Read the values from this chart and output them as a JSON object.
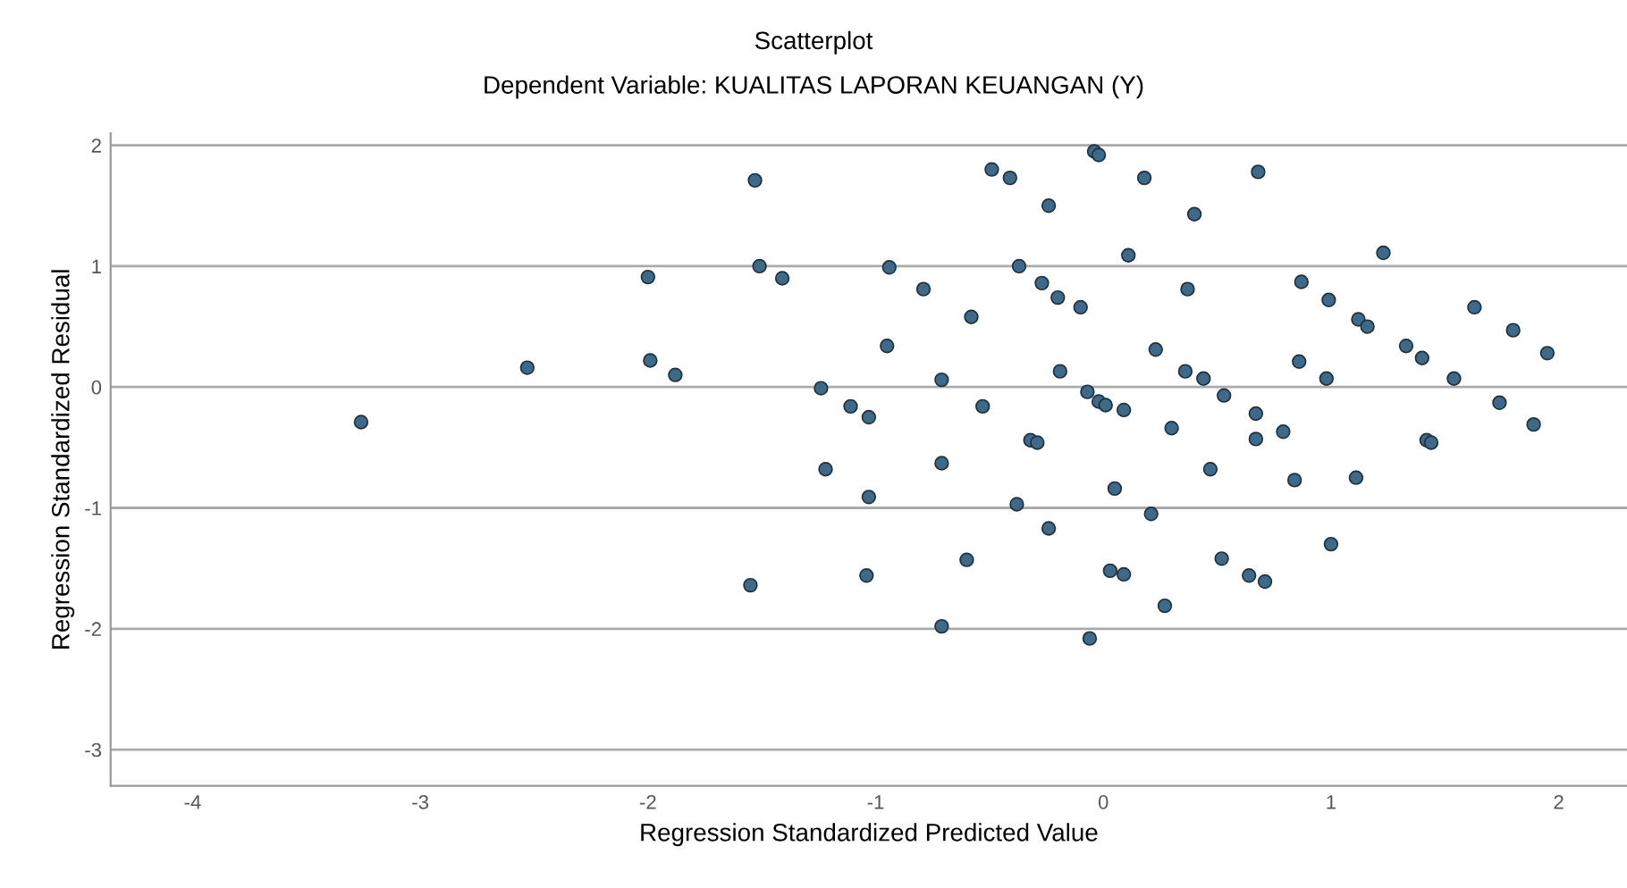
{
  "chart_data": {
    "type": "scatter",
    "title": "Scatterplot",
    "subtitle": "Dependent Variable: KUALITAS LAPORAN KEUANGAN (Y)",
    "xlabel": "Regression Standardized Predicted Value",
    "ylabel": "Regression Standardized Residual",
    "xlim": [
      -4.36,
      2.3
    ],
    "ylim": [
      -3.3,
      2.1
    ],
    "xticks": [
      -4,
      -3,
      -2,
      -1,
      0,
      1,
      2
    ],
    "yticks": [
      -3,
      -2,
      -1,
      0,
      1,
      2
    ],
    "grid": "y",
    "marker": "circle",
    "series": [
      {
        "color": "#3d6a8a",
        "x": [
          -3.26,
          -2.53,
          -2.0,
          -1.99,
          -1.88,
          -1.53,
          -1.51,
          -1.41,
          -1.55,
          -1.24,
          -1.22,
          -1.11,
          -1.03,
          -1.03,
          -1.04,
          -0.94,
          -0.95,
          -0.79,
          -0.71,
          -0.71,
          -0.71,
          -0.58,
          -0.6,
          -0.53,
          -0.49,
          -0.41,
          -0.38,
          -0.37,
          -0.32,
          -0.29,
          -0.27,
          -0.24,
          -0.24,
          -0.2,
          -0.19,
          -0.1,
          -0.07,
          -0.04,
          -0.02,
          -0.02,
          0.01,
          0.05,
          0.03,
          0.09,
          -0.06,
          0.09,
          0.11,
          0.18,
          0.21,
          0.23,
          0.27,
          0.3,
          0.36,
          0.37,
          0.4,
          0.44,
          0.47,
          0.52,
          0.53,
          0.64,
          0.67,
          0.68,
          0.67,
          0.71,
          0.79,
          0.84,
          0.87,
          0.86,
          0.99,
          0.98,
          1.0,
          1.12,
          1.16,
          1.11,
          1.23,
          1.33,
          1.4,
          1.42,
          1.44,
          1.54,
          1.63,
          1.74,
          1.8,
          1.89,
          1.95
        ],
        "values": [
          -0.29,
          0.16,
          0.91,
          0.22,
          0.1,
          1.71,
          1.0,
          0.9,
          -1.64,
          -0.01,
          -0.68,
          -0.16,
          -0.25,
          -0.91,
          -1.56,
          0.99,
          0.34,
          0.81,
          0.06,
          -0.63,
          -1.98,
          0.58,
          -1.43,
          -0.16,
          1.8,
          1.73,
          -0.97,
          1.0,
          -0.44,
          -0.46,
          0.86,
          1.5,
          -1.17,
          0.74,
          0.13,
          0.66,
          -0.04,
          1.95,
          1.92,
          -0.12,
          -0.15,
          -0.84,
          -1.52,
          -1.55,
          -2.08,
          -0.19,
          1.09,
          1.73,
          -1.05,
          0.31,
          -1.81,
          -0.34,
          0.13,
          0.81,
          1.43,
          0.07,
          -0.68,
          -1.42,
          -0.07,
          -1.56,
          -0.43,
          1.78,
          -0.22,
          -1.61,
          -0.37,
          -0.77,
          0.87,
          0.21,
          0.72,
          0.07,
          -1.3,
          0.56,
          0.5,
          -0.75,
          1.11,
          0.34,
          0.24,
          -0.44,
          -0.46,
          0.07,
          0.66,
          -0.13,
          0.47,
          -0.31,
          0.28
        ]
      }
    ]
  }
}
